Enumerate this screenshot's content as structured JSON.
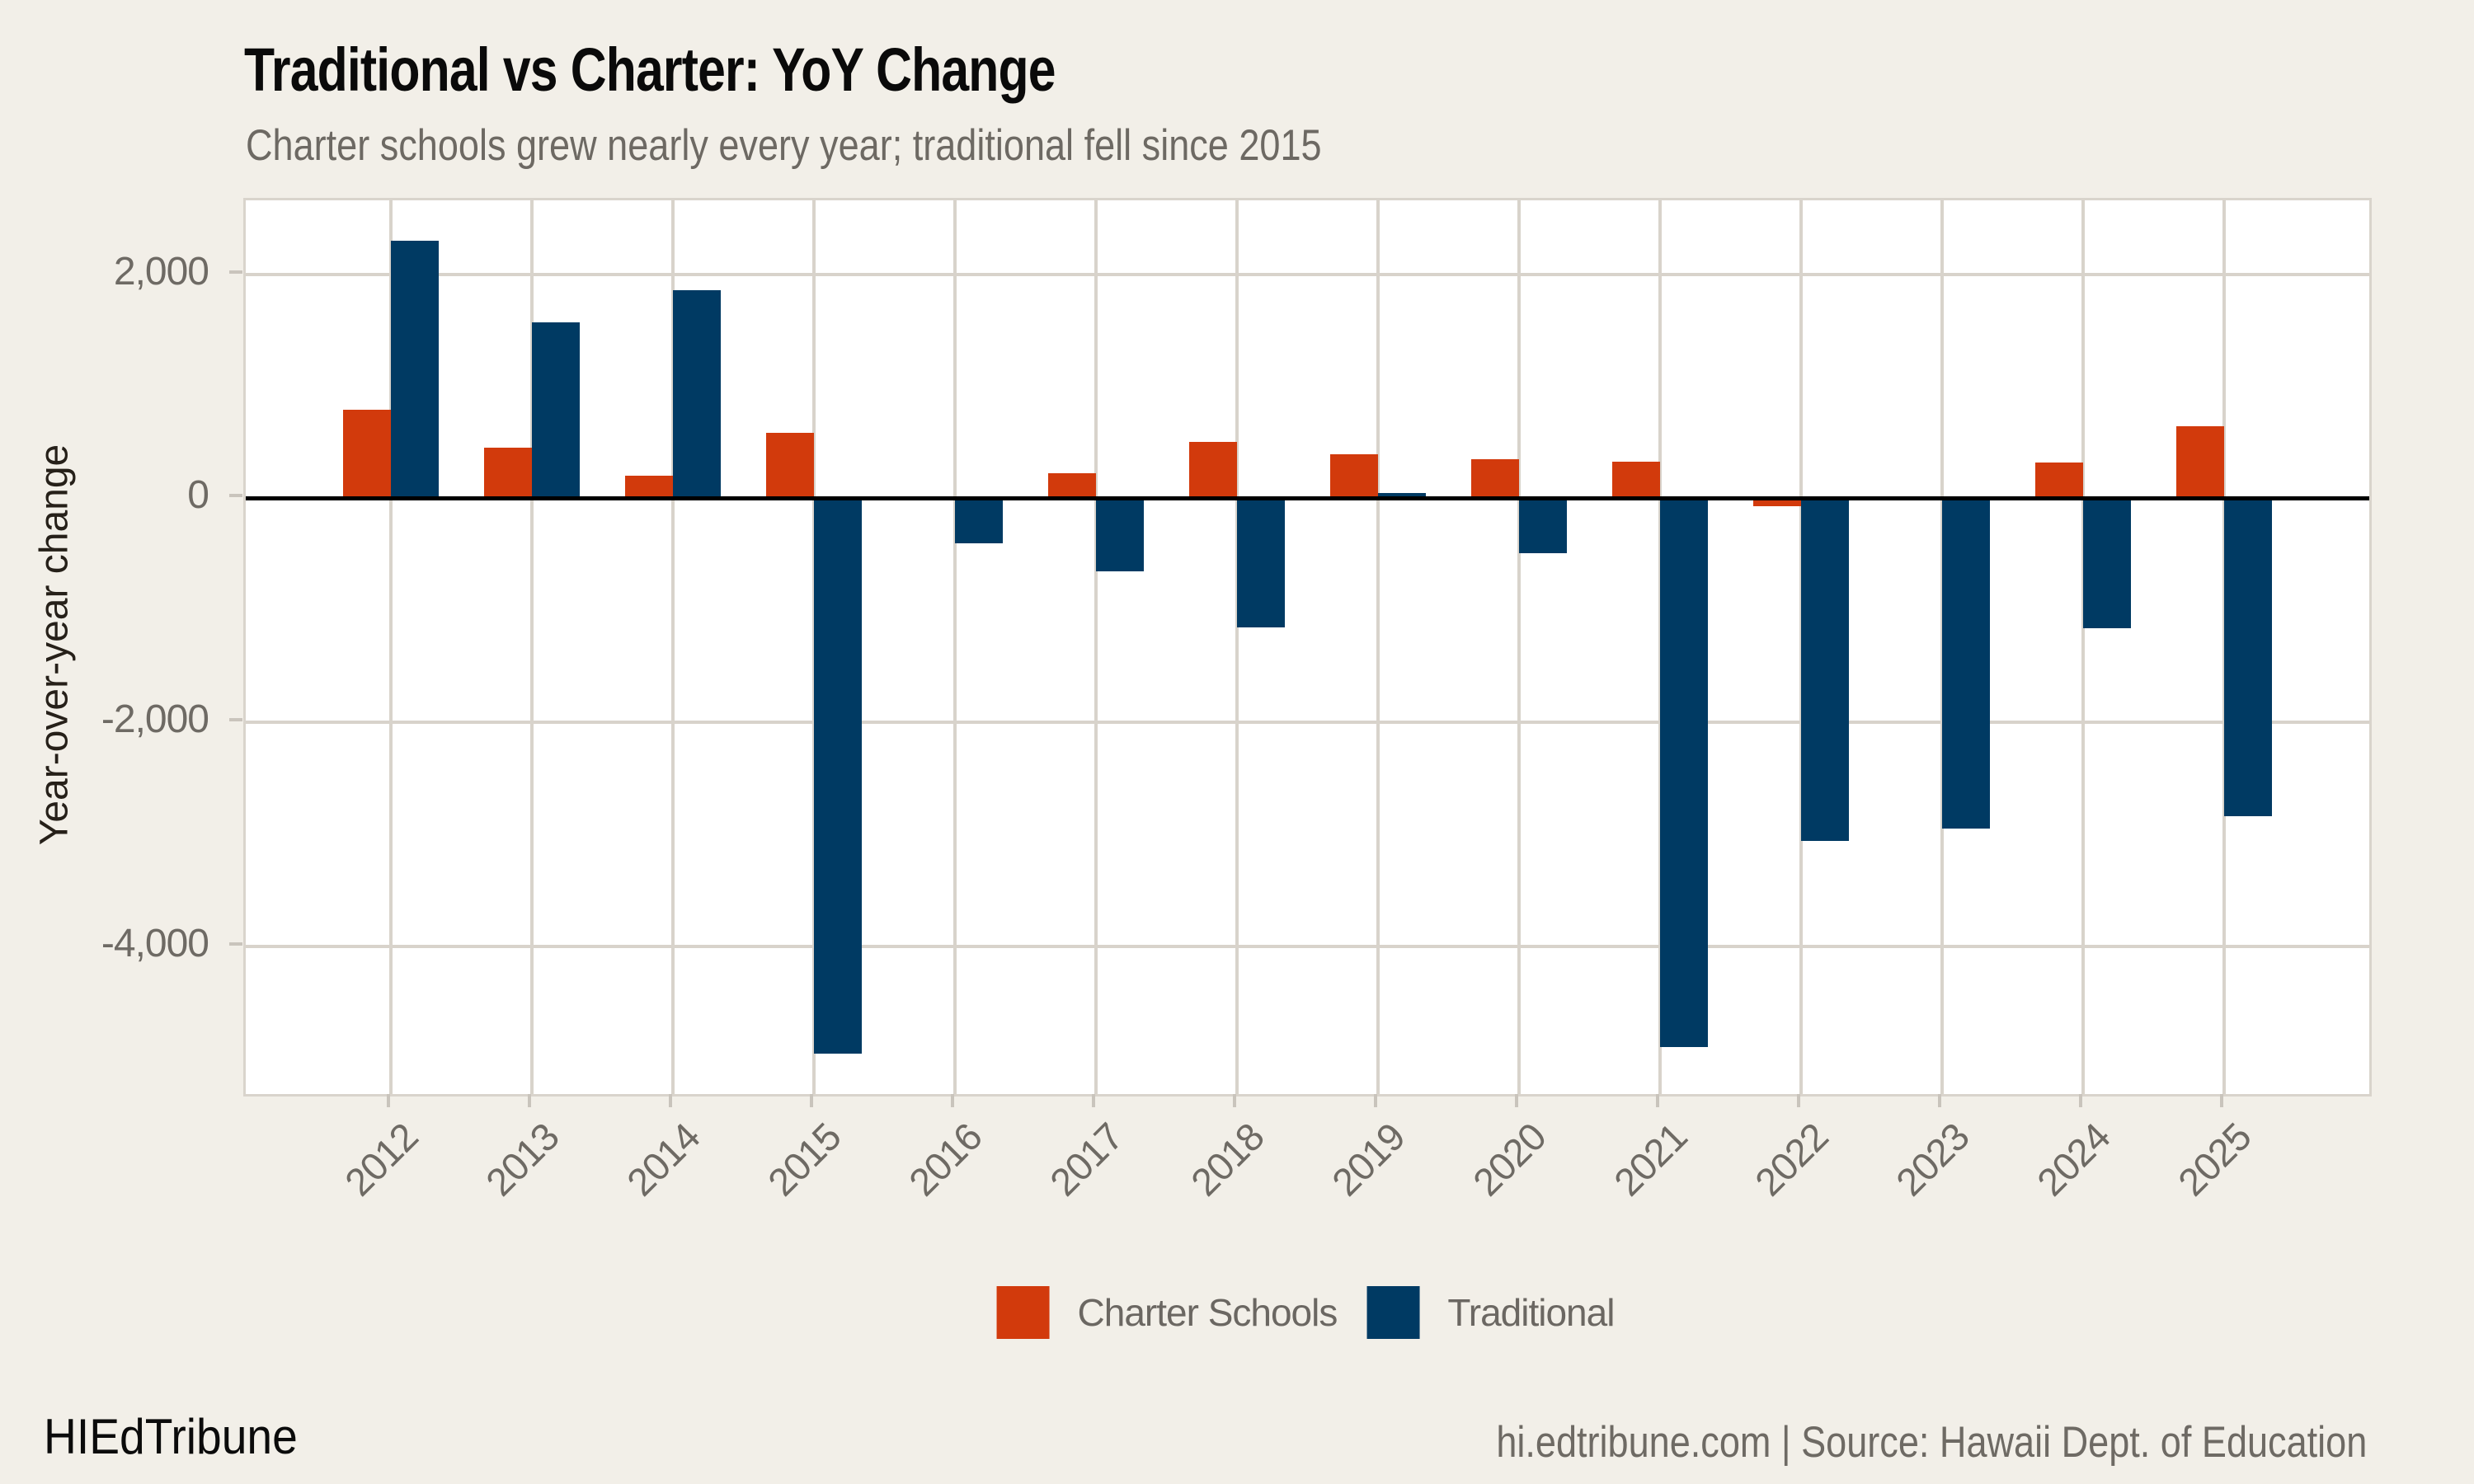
{
  "header": {
    "title": "Traditional vs Charter: YoY Change",
    "subtitle": "Charter schools grew nearly every year; traditional fell since 2015"
  },
  "y_axis": {
    "label": "Year-over-year change",
    "ticks": [
      {
        "value": 2000,
        "label": "2,000"
      },
      {
        "value": 0,
        "label": "0"
      },
      {
        "value": -2000,
        "label": "-2,000"
      },
      {
        "value": -4000,
        "label": "-4,000"
      }
    ]
  },
  "legend": [
    {
      "label": "Charter Schools",
      "color": "#d23a0c"
    },
    {
      "label": "Traditional",
      "color": "#003a63"
    }
  ],
  "footer": {
    "brand": "HIEdTribune",
    "source": "hi.edtribune.com | Source: Hawaii Dept. of Education"
  },
  "colors": {
    "background": "#f2efe8",
    "panel": "#ffffff",
    "gridline": "#d8d3cb",
    "zero_line": "#000000",
    "charter": "#d23a0c",
    "traditional": "#003a63",
    "axis_text": "#6e6a64"
  },
  "chart_data": {
    "type": "bar",
    "title": "Traditional vs Charter: YoY Change",
    "subtitle": "Charter schools grew nearly every year; traditional fell since 2015",
    "xlabel": "",
    "ylabel": "Year-over-year change",
    "categories": [
      "2012",
      "2013",
      "2014",
      "2015",
      "2016",
      "2017",
      "2018",
      "2019",
      "2020",
      "2021",
      "2022",
      "2023",
      "2024",
      "2025"
    ],
    "series": [
      {
        "name": "Charter Schools",
        "color": "#d23a0c",
        "values": [
          790,
          455,
          200,
          585,
          0,
          225,
          500,
          390,
          345,
          330,
          -70,
          0,
          320,
          640
        ]
      },
      {
        "name": "Traditional",
        "color": "#003a63",
        "values": [
          2300,
          1570,
          1860,
          -4960,
          -400,
          -650,
          -1150,
          45,
          -490,
          -4900,
          -3060,
          -2950,
          -1160,
          -2840
        ]
      }
    ],
    "ylim": [
      -5320,
      2660
    ],
    "grid": true,
    "zero_line": true,
    "legend_position": "bottom",
    "x_label_rotation": 45
  }
}
